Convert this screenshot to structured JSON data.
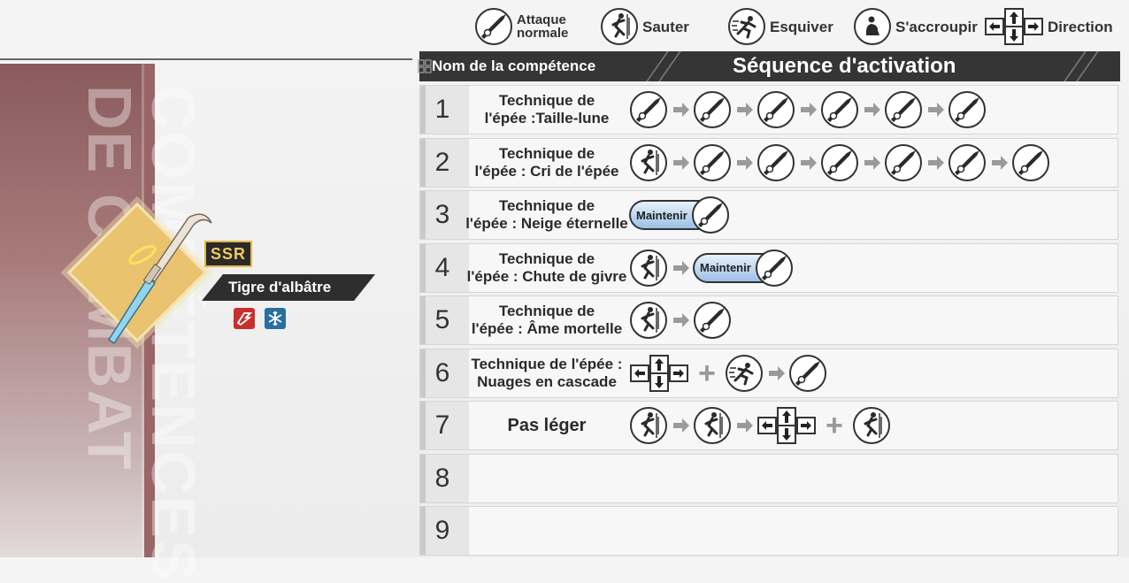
{
  "legend": {
    "attack": "Attaque normale",
    "attack_l1": "Attaque",
    "attack_l2": "normale",
    "jump": "Sauter",
    "dodge": "Esquiver",
    "crouch": "S'accroupir",
    "direction": "Direction"
  },
  "banner": {
    "title": "COMPÉTENCES DE COMBAT",
    "line1": "COMPÉTENCES",
    "line2": "DE COMBAT"
  },
  "weapon": {
    "rarity": "SSR",
    "name": "Tigre d'albâtre",
    "elements": [
      "impact-icon",
      "ice-icon"
    ]
  },
  "table": {
    "header_name": "Nom de la compétence",
    "header_sequence": "Séquence d'activation",
    "hold_label": "Maintenir",
    "rows": [
      {
        "num": "1",
        "name_l1": "Technique de",
        "name_l2": "l'épée :Taille-lune",
        "sequence": [
          "attack",
          "arrow",
          "attack",
          "arrow",
          "attack",
          "arrow",
          "attack",
          "arrow",
          "attack",
          "arrow",
          "attack"
        ]
      },
      {
        "num": "2",
        "name_l1": "Technique de",
        "name_l2": "l'épée : Cri de l'épée",
        "sequence": [
          "jump",
          "arrow",
          "attack",
          "arrow",
          "attack",
          "arrow",
          "attack",
          "arrow",
          "attack",
          "arrow",
          "attack",
          "arrow",
          "attack"
        ]
      },
      {
        "num": "3",
        "name_l1": "Technique de",
        "name_l2": "l'épée : Neige éternelle",
        "sequence": [
          "hold"
        ]
      },
      {
        "num": "4",
        "name_l1": "Technique de",
        "name_l2": "l'épée : Chute de givre",
        "sequence": [
          "jump",
          "arrow",
          "hold"
        ]
      },
      {
        "num": "5",
        "name_l1": "Technique de",
        "name_l2": "l'épée : Âme mortelle",
        "sequence": [
          "jump",
          "arrow",
          "attack"
        ]
      },
      {
        "num": "6",
        "name_l1": "Technique de l'épée :",
        "name_l2": "Nuages en cascade",
        "sequence": [
          "direction",
          "plus",
          "dodge",
          "arrow",
          "attack"
        ]
      },
      {
        "num": "7",
        "name_l1": "Pas léger",
        "name_l2": "",
        "sequence": [
          "jump",
          "arrow",
          "jump",
          "arrow",
          "direction",
          "plus",
          "jump"
        ]
      },
      {
        "num": "8",
        "name_l1": "",
        "name_l2": "",
        "sequence": []
      },
      {
        "num": "9",
        "name_l1": "",
        "name_l2": "",
        "sequence": []
      }
    ]
  },
  "colors": {
    "header_bg": "#353535",
    "banner": "#8a5a5c",
    "hold_fill": "#9cc0e6",
    "ssr_gold": "#f1cc5b"
  }
}
